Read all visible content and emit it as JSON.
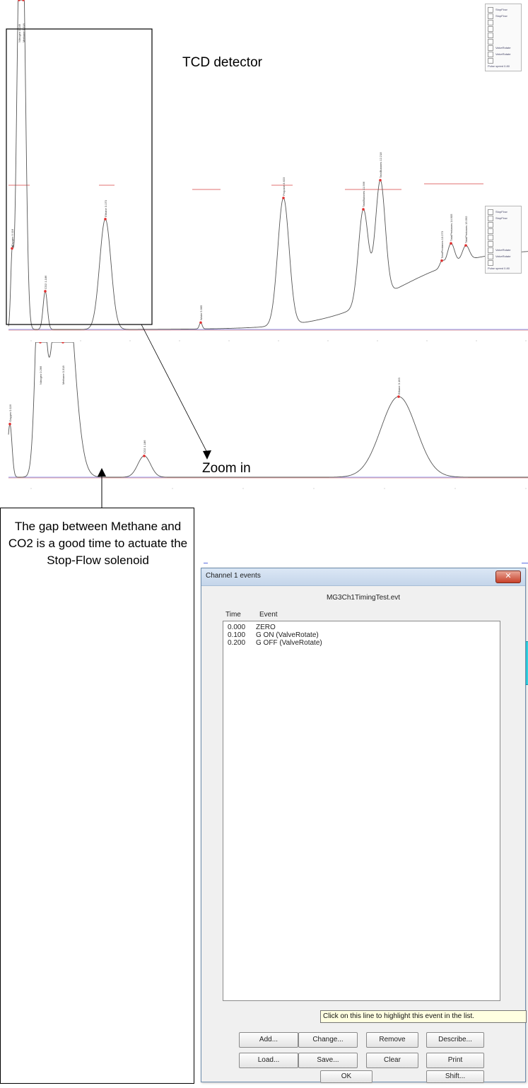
{
  "annotations": {
    "detector_label": "TCD detector",
    "zoom_label": "Zoom in",
    "note": "The gap between Methane and CO2 is a good time to actuate the Stop-Flow solenoid"
  },
  "chart_data": [
    {
      "type": "line",
      "title": "",
      "x_range": [
        0,
        747
      ],
      "y_range": [
        0,
        100
      ],
      "baseline": 2,
      "peaks": [
        {
          "label": "Oxygen 0.116",
          "x": 17,
          "height": 32,
          "width": 2
        },
        {
          "label": "Nitrogen 0.249",
          "x": 27,
          "height": 140,
          "width": 4
        },
        {
          "label": "Methane 0.318",
          "x": 33,
          "height": 140,
          "width": 4
        },
        {
          "label": "CO2 1.186",
          "x": 64,
          "height": 18,
          "width": 3
        },
        {
          "label": "Ethane 3.170",
          "x": 149,
          "height": 52,
          "width": 8
        },
        {
          "label": "Water 5.965",
          "x": 284,
          "height": 3,
          "width": 2
        },
        {
          "label": "Propane 8.623",
          "x": 401,
          "height": 60,
          "width": 8
        },
        {
          "label": "TotalButanes 11.566",
          "x": 514,
          "height": 45,
          "width": 7
        },
        {
          "label": "TotalButanes 12.218",
          "x": 538,
          "height": 55,
          "width": 7
        },
        {
          "label": "TotalPentanes 13.273",
          "x": 625,
          "height": 3,
          "width": 3
        },
        {
          "label": "TotalPentanes 14.905",
          "x": 638,
          "height": 10,
          "width": 5
        },
        {
          "label": "TotalPentanes 15.592",
          "x": 659,
          "height": 7,
          "width": 5
        }
      ]
    },
    {
      "type": "line",
      "title": "",
      "x_range": [
        0,
        747
      ],
      "y_range": [
        0,
        100
      ],
      "baseline": 2,
      "peaks": [
        {
          "label": "Oxygen 0.116",
          "x": 14,
          "height": 35,
          "width": 3
        },
        {
          "label": "Nitrogen 0.266",
          "x": 57,
          "height": 160,
          "width": 6
        },
        {
          "label": "Methane 0.318",
          "x": 89,
          "height": 160,
          "width": 14
        },
        {
          "label": "CO2 1.186",
          "x": 204,
          "height": 14,
          "width": 9
        },
        {
          "label": "Ethane 3.163",
          "x": 564,
          "height": 53,
          "width": 25
        }
      ]
    }
  ],
  "legend_panel": {
    "items": [
      "StopFlow",
      "StopFlow",
      "",
      "",
      "",
      "",
      "ValveRotate",
      "ValveRotate",
      ""
    ],
    "speed_label": "Pulse speed",
    "speed_value": "0.80"
  },
  "dialog": {
    "title": "Channel 1 events",
    "file": "MG3Ch1TimingTest.evt",
    "col_time": "Time",
    "col_event": "Event",
    "events": [
      {
        "time": "0.000",
        "event": "ZERO"
      },
      {
        "time": "0.100",
        "event": "G ON (ValveRotate)"
      },
      {
        "time": "0.200",
        "event": "G OFF (ValveRotate)"
      }
    ],
    "tooltip": "Click on this line to highlight this event in the list.",
    "buttons": {
      "add": "Add...",
      "change": "Change...",
      "remove": "Remove",
      "describe": "Describe...",
      "load": "Load...",
      "save": "Save...",
      "clear": "Clear",
      "print": "Print",
      "ok": "OK",
      "shift": "Shift..."
    }
  }
}
